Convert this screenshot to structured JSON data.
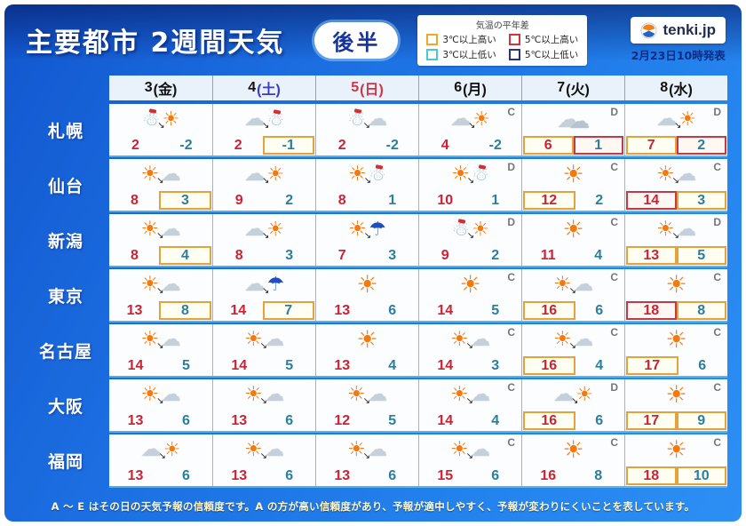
{
  "header": {
    "title": "主要都市 2週間天気",
    "badge": "後半",
    "logo_text": "tenki.jp",
    "issued": "2月23日10時発表"
  },
  "legend": {
    "title": "気温の平年差",
    "items": [
      {
        "label": "3℃以上高い",
        "color": "#f0a632"
      },
      {
        "label": "5℃以上高い",
        "color": "#cc3344"
      },
      {
        "label": "3℃以上低い",
        "color": "#45c8dc"
      },
      {
        "label": "5℃以上低い",
        "color": "#27357e"
      }
    ]
  },
  "colors": {
    "high_temp": "#cc2233",
    "low_temp": "#2a7f9e",
    "box_yellow": "#e3a23c",
    "box_red": "#c23a4a"
  },
  "table": {
    "columns": [
      {
        "num": "3",
        "week": "(金)",
        "num_color": "#111111",
        "week_color": "#111111"
      },
      {
        "num": "4",
        "week": "(土)",
        "num_color": "#111111",
        "week_color": "#3b3bc4"
      },
      {
        "num": "5",
        "week": "(日)",
        "num_color": "#d03545",
        "week_color": "#d03545"
      },
      {
        "num": "6",
        "week": "(月)",
        "num_color": "#111111",
        "week_color": "#111111"
      },
      {
        "num": "7",
        "week": "(火)",
        "num_color": "#111111",
        "week_color": "#111111"
      },
      {
        "num": "8",
        "week": "(水)",
        "num_color": "#111111",
        "week_color": "#111111"
      }
    ],
    "rows": [
      {
        "city": "札幌",
        "cells": [
          {
            "icon": "snow>sun",
            "letter": "",
            "high": "2",
            "low": "-2",
            "high_box": "",
            "low_box": ""
          },
          {
            "icon": "cloud>snow",
            "letter": "",
            "high": "2",
            "low": "-1",
            "high_box": "",
            "low_box": "yellow"
          },
          {
            "icon": "snow>cloud",
            "letter": "",
            "high": "2",
            "low": "-2",
            "high_box": "",
            "low_box": ""
          },
          {
            "icon": "cloud>sun",
            "letter": "C",
            "high": "4",
            "low": "-2",
            "high_box": "",
            "low_box": ""
          },
          {
            "icon": "clouds",
            "letter": "D",
            "high": "6",
            "low": "1",
            "high_box": "yellow",
            "low_box": "red"
          },
          {
            "icon": "cloud>sun",
            "letter": "D",
            "high": "7",
            "low": "2",
            "high_box": "yellow",
            "low_box": "red"
          }
        ]
      },
      {
        "city": "仙台",
        "cells": [
          {
            "icon": "sun>cloud",
            "letter": "",
            "high": "8",
            "low": "3",
            "high_box": "",
            "low_box": "yellow"
          },
          {
            "icon": "cloud>sun",
            "letter": "",
            "high": "9",
            "low": "2",
            "high_box": "",
            "low_box": ""
          },
          {
            "icon": "sun>snow",
            "letter": "",
            "high": "8",
            "low": "1",
            "high_box": "",
            "low_box": ""
          },
          {
            "icon": "sun>snow",
            "letter": "D",
            "high": "10",
            "low": "1",
            "high_box": "",
            "low_box": ""
          },
          {
            "icon": "sun",
            "letter": "C",
            "high": "12",
            "low": "2",
            "high_box": "yellow",
            "low_box": ""
          },
          {
            "icon": "sun>cloud",
            "letter": "C",
            "high": "14",
            "low": "3",
            "high_box": "red",
            "low_box": "yellow"
          }
        ]
      },
      {
        "city": "新潟",
        "cells": [
          {
            "icon": "sun>cloud",
            "letter": "",
            "high": "8",
            "low": "4",
            "high_box": "",
            "low_box": "yellow"
          },
          {
            "icon": "cloud>sun",
            "letter": "",
            "high": "8",
            "low": "3",
            "high_box": "",
            "low_box": ""
          },
          {
            "icon": "sun>rain",
            "letter": "",
            "high": "7",
            "low": "3",
            "high_box": "",
            "low_box": ""
          },
          {
            "icon": "snow>sun",
            "letter": "D",
            "high": "9",
            "low": "2",
            "high_box": "",
            "low_box": ""
          },
          {
            "icon": "sun",
            "letter": "C",
            "high": "11",
            "low": "4",
            "high_box": "",
            "low_box": ""
          },
          {
            "icon": "sun>cloud",
            "letter": "D",
            "high": "13",
            "low": "5",
            "high_box": "yellow",
            "low_box": "yellow"
          }
        ]
      },
      {
        "city": "東京",
        "cells": [
          {
            "icon": "sun>cloud",
            "letter": "",
            "high": "13",
            "low": "8",
            "high_box": "",
            "low_box": "yellow"
          },
          {
            "icon": "cloud>rain",
            "letter": "",
            "high": "14",
            "low": "7",
            "high_box": "",
            "low_box": "yellow"
          },
          {
            "icon": "sun",
            "letter": "",
            "high": "13",
            "low": "6",
            "high_box": "",
            "low_box": ""
          },
          {
            "icon": "sun",
            "letter": "C",
            "high": "14",
            "low": "5",
            "high_box": "",
            "low_box": ""
          },
          {
            "icon": "sun>cloud",
            "letter": "C",
            "high": "16",
            "low": "6",
            "high_box": "yellow",
            "low_box": ""
          },
          {
            "icon": "sun",
            "letter": "C",
            "high": "18",
            "low": "8",
            "high_box": "red",
            "low_box": "yellow"
          }
        ]
      },
      {
        "city": "名古屋",
        "cells": [
          {
            "icon": "sun>cloud",
            "letter": "",
            "high": "14",
            "low": "5",
            "high_box": "",
            "low_box": ""
          },
          {
            "icon": "sun>cloud",
            "letter": "",
            "high": "14",
            "low": "5",
            "high_box": "",
            "low_box": ""
          },
          {
            "icon": "sun",
            "letter": "",
            "high": "13",
            "low": "4",
            "high_box": "",
            "low_box": ""
          },
          {
            "icon": "sun>cloud",
            "letter": "C",
            "high": "14",
            "low": "3",
            "high_box": "",
            "low_box": ""
          },
          {
            "icon": "sun>cloud",
            "letter": "C",
            "high": "16",
            "low": "4",
            "high_box": "yellow",
            "low_box": ""
          },
          {
            "icon": "sun",
            "letter": "C",
            "high": "17",
            "low": "6",
            "high_box": "yellow",
            "low_box": ""
          }
        ]
      },
      {
        "city": "大阪",
        "cells": [
          {
            "icon": "sun>cloud",
            "letter": "",
            "high": "13",
            "low": "6",
            "high_box": "",
            "low_box": ""
          },
          {
            "icon": "sun>cloud",
            "letter": "",
            "high": "13",
            "low": "6",
            "high_box": "",
            "low_box": ""
          },
          {
            "icon": "sun>cloud",
            "letter": "",
            "high": "12",
            "low": "5",
            "high_box": "",
            "low_box": ""
          },
          {
            "icon": "sun>cloud",
            "letter": "C",
            "high": "14",
            "low": "4",
            "high_box": "",
            "low_box": ""
          },
          {
            "icon": "cloud>sun",
            "letter": "D",
            "high": "16",
            "low": "6",
            "high_box": "yellow",
            "low_box": ""
          },
          {
            "icon": "sun",
            "letter": "C",
            "high": "17",
            "low": "9",
            "high_box": "yellow",
            "low_box": "yellow"
          }
        ]
      },
      {
        "city": "福岡",
        "cells": [
          {
            "icon": "cloud>sun",
            "letter": "",
            "high": "13",
            "low": "6",
            "high_box": "",
            "low_box": ""
          },
          {
            "icon": "sun>cloud",
            "letter": "",
            "high": "13",
            "low": "6",
            "high_box": "",
            "low_box": ""
          },
          {
            "icon": "sun>cloud",
            "letter": "",
            "high": "13",
            "low": "6",
            "high_box": "",
            "low_box": ""
          },
          {
            "icon": "sun>cloud",
            "letter": "C",
            "high": "15",
            "low": "6",
            "high_box": "",
            "low_box": ""
          },
          {
            "icon": "sun",
            "letter": "C",
            "high": "16",
            "low": "8",
            "high_box": "",
            "low_box": ""
          },
          {
            "icon": "sun",
            "letter": "C",
            "high": "18",
            "low": "10",
            "high_box": "yellow",
            "low_box": "yellow"
          }
        ]
      }
    ]
  },
  "footer": {
    "note": "A ～ E はその日の天気予報の信頼度です。A の方が高い信頼度があり、予報が適中しやすく、予報が変わりにくいことを表しています。"
  },
  "chart_data": {
    "type": "table",
    "title": "主要都市 2週間天気（後半）",
    "columns": [
      "3(金)",
      "4(土)",
      "5(日)",
      "6(月)",
      "7(火)",
      "8(水)"
    ],
    "rows": [
      {
        "city": "札幌",
        "high": [
          2,
          2,
          2,
          4,
          6,
          7
        ],
        "low": [
          -2,
          -1,
          -2,
          -2,
          1,
          2
        ],
        "weather": [
          "雪のち晴",
          "曇のち雪",
          "雪のち曇",
          "曇のち晴",
          "曇り",
          "曇のち晴"
        ],
        "confidence": [
          "",
          "",
          "",
          "C",
          "D",
          "D"
        ]
      },
      {
        "city": "仙台",
        "high": [
          8,
          9,
          8,
          10,
          12,
          14
        ],
        "low": [
          3,
          2,
          1,
          1,
          2,
          3
        ],
        "weather": [
          "晴のち曇",
          "曇のち晴",
          "晴のち雪",
          "晴のち雪",
          "晴れ",
          "晴のち曇"
        ],
        "confidence": [
          "",
          "",
          "",
          "D",
          "C",
          "C"
        ]
      },
      {
        "city": "新潟",
        "high": [
          8,
          8,
          7,
          9,
          11,
          13
        ],
        "low": [
          4,
          3,
          3,
          2,
          4,
          5
        ],
        "weather": [
          "晴のち曇",
          "曇のち晴",
          "晴のち雨",
          "雪のち晴",
          "晴れ",
          "晴のち曇"
        ],
        "confidence": [
          "",
          "",
          "",
          "D",
          "C",
          "D"
        ]
      },
      {
        "city": "東京",
        "high": [
          13,
          14,
          13,
          14,
          16,
          18
        ],
        "low": [
          8,
          7,
          6,
          5,
          6,
          8
        ],
        "weather": [
          "晴のち曇",
          "曇のち雨",
          "晴れ",
          "晴れ",
          "晴のち曇",
          "晴れ"
        ],
        "confidence": [
          "",
          "",
          "",
          "C",
          "C",
          "C"
        ]
      },
      {
        "city": "名古屋",
        "high": [
          14,
          14,
          13,
          14,
          16,
          17
        ],
        "low": [
          5,
          5,
          4,
          3,
          4,
          6
        ],
        "weather": [
          "晴のち曇",
          "晴のち曇",
          "晴れ",
          "晴のち曇",
          "晴のち曇",
          "晴れ"
        ],
        "confidence": [
          "",
          "",
          "",
          "C",
          "C",
          "C"
        ]
      },
      {
        "city": "大阪",
        "high": [
          13,
          13,
          12,
          14,
          16,
          17
        ],
        "low": [
          6,
          6,
          5,
          4,
          6,
          9
        ],
        "weather": [
          "晴のち曇",
          "晴のち曇",
          "晴のち曇",
          "晴のち曇",
          "曇のち晴",
          "晴れ"
        ],
        "confidence": [
          "",
          "",
          "",
          "C",
          "D",
          "C"
        ]
      },
      {
        "city": "福岡",
        "high": [
          13,
          13,
          13,
          15,
          16,
          18
        ],
        "low": [
          6,
          6,
          6,
          6,
          8,
          10
        ],
        "weather": [
          "曇のち晴",
          "晴のち曇",
          "晴のち曇",
          "晴のち曇",
          "晴れ",
          "晴れ"
        ],
        "confidence": [
          "",
          "",
          "",
          "C",
          "C",
          "C"
        ]
      }
    ]
  }
}
